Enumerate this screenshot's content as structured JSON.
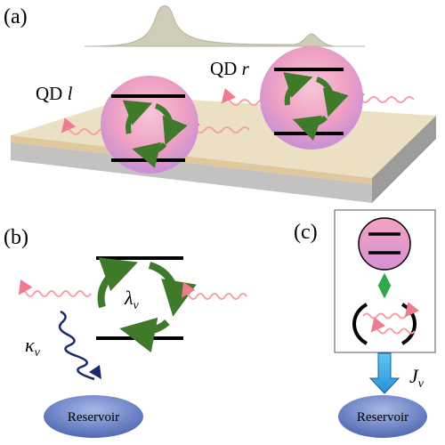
{
  "panel_a": {
    "label": "(a)",
    "qd_left": {
      "prefix": "QD",
      "name": "l"
    },
    "qd_right": {
      "prefix": "QD",
      "name": "r"
    }
  },
  "panel_b": {
    "label": "(b)",
    "coupling": {
      "symbol": "λ",
      "subscript": "ν"
    },
    "decay": {
      "symbol": "κ",
      "subscript": "ν"
    },
    "reservoir": "Reservoir"
  },
  "panel_c": {
    "label": "(c)",
    "rate": {
      "symbol": "J",
      "subscript": "ν"
    },
    "reservoir": "Reservoir"
  }
}
